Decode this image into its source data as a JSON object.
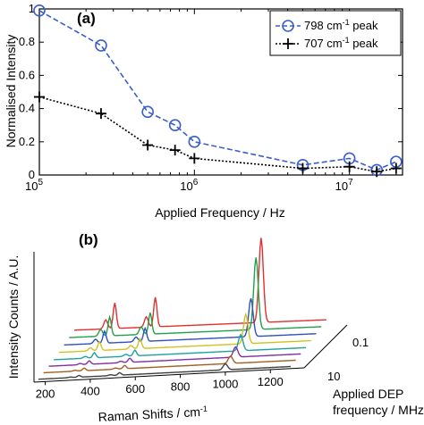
{
  "chart_data": [
    {
      "panel": "(a)",
      "type": "line",
      "xscale": "log",
      "xlim": [
        100000,
        22000000
      ],
      "ylim": [
        0,
        1
      ],
      "xlabel": "Applied Frequency / Hz",
      "ylabel": "Normalised Intensity",
      "yticks": [
        "0",
        "0.2",
        "0.4",
        "0.6",
        "0.8",
        "1"
      ],
      "xticks": [
        {
          "base": "10",
          "exp": "5",
          "value": 100000
        },
        {
          "base": "10",
          "exp": "6",
          "value": 1000000
        },
        {
          "base": "10",
          "exp": "7",
          "value": 10000000
        }
      ],
      "legend_position": "top-right",
      "series": [
        {
          "name_num": "798 cm",
          "name_exp": "-1",
          "name_tail": " peak",
          "color": "#3a5fc8",
          "marker": "circle",
          "linestyle": "dashed",
          "x": [
            100000,
            250000,
            500000,
            750000,
            1000000,
            5000000,
            10000000,
            15000000,
            20000000
          ],
          "y": [
            0.99,
            0.78,
            0.38,
            0.3,
            0.2,
            0.06,
            0.1,
            0.03,
            0.08
          ]
        },
        {
          "name_num": "707 cm",
          "name_exp": "-1",
          "name_tail": " peak",
          "color": "#000000",
          "marker": "plus",
          "linestyle": "dotted",
          "x": [
            100000,
            250000,
            500000,
            750000,
            1000000,
            5000000,
            10000000,
            15000000,
            20000000
          ],
          "y": [
            0.47,
            0.37,
            0.18,
            0.15,
            0.1,
            0.04,
            0.05,
            0.02,
            0.04
          ]
        }
      ]
    },
    {
      "panel": "(b)",
      "type": "line",
      "xlabel_main": "Raman Shifts / cm",
      "xlabel_exp": "-1",
      "ylabel": "Intensity Counts / A.U.",
      "zlabel_line1": "Applied DEP",
      "zlabel_line2": "frequency / MHz",
      "xlim": [
        150,
        1350
      ],
      "xticks": [
        "200",
        "400",
        "600",
        "800",
        "1000",
        "1200"
      ],
      "zticks": [
        "0.1",
        "10"
      ],
      "series": [
        {
          "color": "#e03030",
          "peaks": [
            [
              350,
              30
            ],
            [
              530,
              36
            ],
            [
              1000,
              115
            ]
          ],
          "baseline": 14
        },
        {
          "color": "#22a04a",
          "peaks": [
            [
              350,
              22
            ],
            [
              530,
              26
            ],
            [
              1000,
              98
            ]
          ],
          "baseline": 12
        },
        {
          "color": "#3050c0",
          "peaks": [
            [
              350,
              14
            ],
            [
              530,
              16
            ],
            [
              1000,
              52
            ]
          ],
          "baseline": 10
        },
        {
          "color": "#d4c020",
          "peaks": [
            [
              350,
              10
            ],
            [
              530,
              12
            ],
            [
              1000,
              40
            ]
          ],
          "baseline": 8
        },
        {
          "color": "#20a0a0",
          "peaks": [
            [
              350,
              6
            ],
            [
              530,
              7
            ],
            [
              1000,
              22
            ]
          ],
          "baseline": 6
        },
        {
          "color": "#8030a0",
          "peaks": [
            [
              350,
              4
            ],
            [
              530,
              5
            ],
            [
              1000,
              14
            ]
          ],
          "baseline": 5
        },
        {
          "color": "#a06020",
          "peaks": [
            [
              350,
              3
            ],
            [
              530,
              4
            ],
            [
              1000,
              10
            ]
          ],
          "baseline": 4
        },
        {
          "color": "#404040",
          "peaks": [
            [
              350,
              2
            ],
            [
              530,
              3
            ],
            [
              1000,
              8
            ]
          ],
          "baseline": 3
        }
      ]
    }
  ]
}
